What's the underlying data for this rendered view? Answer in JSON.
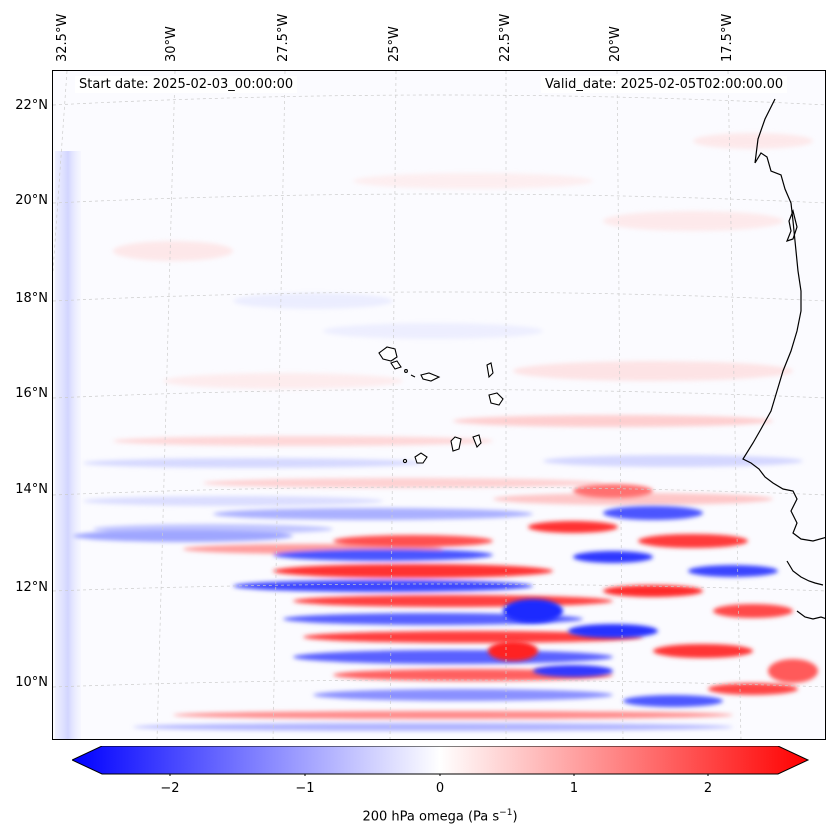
{
  "header": {
    "start_date": "Start date: 2025-02-03_00:00:00",
    "valid_date": "Valid_date: 2025-02-05T02:00:00.00"
  },
  "axes": {
    "longitude_labels": [
      "32.5°W",
      "30°W",
      "27.5°W",
      "25°W",
      "22.5°W",
      "20°W",
      "17.5°W"
    ],
    "latitude_labels": [
      "22°N",
      "20°N",
      "18°N",
      "16°N",
      "14°N",
      "12°N",
      "10°N"
    ]
  },
  "colorbar": {
    "tick_labels": [
      "−2",
      "−1",
      "0",
      "1",
      "2"
    ],
    "label": "200 hPa omega (Pa s",
    "label_exponent": "−1",
    "label_close": ")",
    "range": [
      -2.7,
      2.7
    ],
    "colors": {
      "negative": "#0000ff",
      "zero": "#ffffff",
      "positive": "#ff0000"
    }
  },
  "map": {
    "variable": "omega",
    "level": "200 hPa",
    "coastline_color": "#000000",
    "grid_color": "#cccccc"
  }
}
